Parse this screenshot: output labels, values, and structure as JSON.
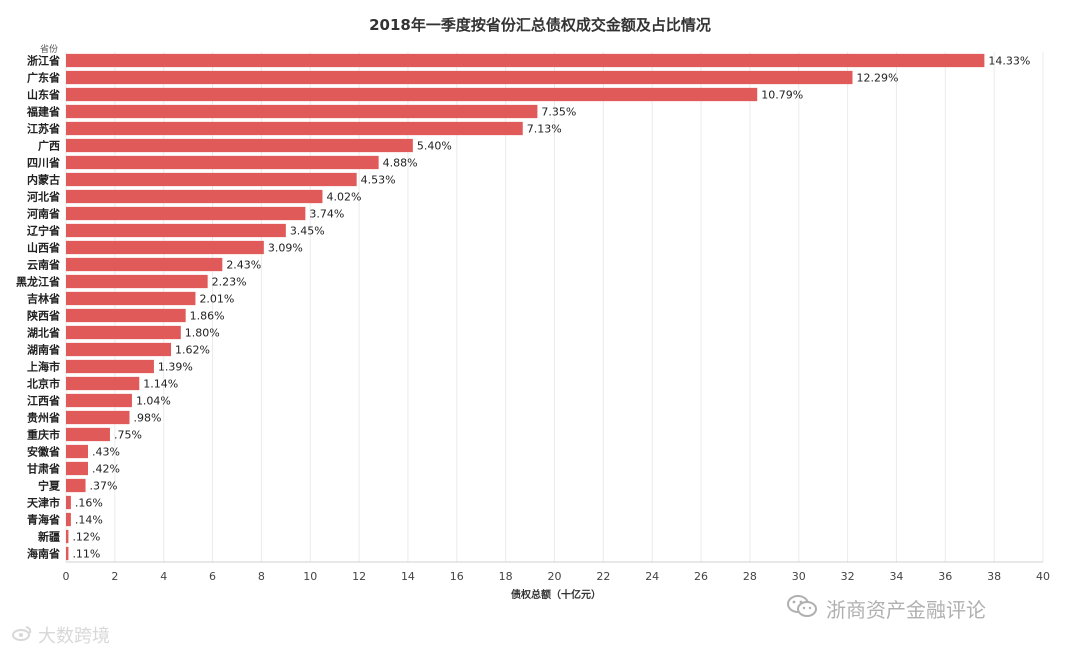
{
  "chart_data": {
    "type": "bar",
    "orientation": "horizontal",
    "title": "2018年一季度按省份汇总债权成交金额及占比情况",
    "ylabel": "省份",
    "xlabel": "债权总额（十亿元）",
    "xlim": [
      0,
      40
    ],
    "xticks": [
      "0",
      "2",
      "4",
      "6",
      "8",
      "10",
      "12",
      "14",
      "16",
      "18",
      "20",
      "22",
      "24",
      "26",
      "28",
      "30",
      "32",
      "34",
      "36",
      "38",
      "40"
    ],
    "bar_color": "#e05a5a",
    "grid": true,
    "categories": [
      "浙江省",
      "广东省",
      "山东省",
      "福建省",
      "江苏省",
      "广西",
      "四川省",
      "内蒙古",
      "河北省",
      "河南省",
      "辽宁省",
      "山西省",
      "云南省",
      "黑龙江省",
      "吉林省",
      "陕西省",
      "湖北省",
      "湖南省",
      "上海市",
      "北京市",
      "江西省",
      "贵州省",
      "重庆市",
      "安徽省",
      "甘肃省",
      "宁夏",
      "天津市",
      "青海省",
      "新疆",
      "海南省"
    ],
    "values": [
      37.6,
      32.2,
      28.3,
      19.3,
      18.7,
      14.2,
      12.8,
      11.9,
      10.5,
      9.8,
      9.0,
      8.1,
      6.4,
      5.8,
      5.3,
      4.9,
      4.7,
      4.3,
      3.6,
      3.0,
      2.7,
      2.6,
      1.8,
      0.9,
      0.9,
      0.8,
      0.2,
      0.2,
      0.1,
      0.1
    ],
    "data_labels": [
      "14.33%",
      "12.29%",
      "10.79%",
      "7.35%",
      "7.13%",
      "5.40%",
      "4.88%",
      "4.53%",
      "4.02%",
      "3.74%",
      "3.45%",
      "3.09%",
      "2.43%",
      "2.23%",
      "2.01%",
      "1.86%",
      "1.80%",
      "1.62%",
      "1.39%",
      "1.14%",
      "1.04%",
      ".98%",
      ".75%",
      ".43%",
      ".42%",
      ".37%",
      ".16%",
      ".14%",
      ".12%",
      ".11%"
    ]
  },
  "watermarks": {
    "left": "大数跨境",
    "right": "浙商资产金融评论",
    "left_icon": "weibo-icon",
    "right_icon": "wechat-icon"
  }
}
